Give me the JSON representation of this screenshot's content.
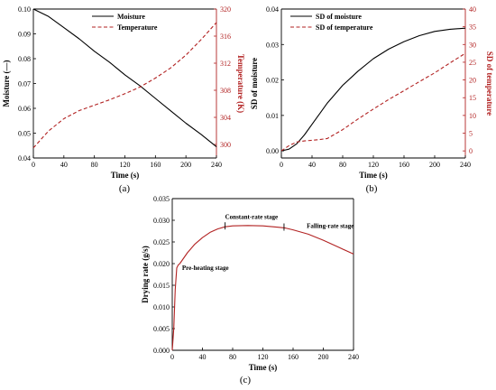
{
  "colors": {
    "black": "#000000",
    "red": "#b22222"
  },
  "chart_data": [
    {
      "type": "line",
      "panel_label": "(a)",
      "xlabel": "Time (s)",
      "ylabel": "Moisture (—)",
      "y2label": "Temperature (K)",
      "xlim": [
        0,
        240
      ],
      "ylim": [
        0.04,
        0.1
      ],
      "y2lim": [
        298,
        320
      ],
      "xticks": [
        "0",
        "40",
        "80",
        "120",
        "160",
        "200",
        "240"
      ],
      "yticks": [
        "0.04",
        "0.05",
        "0.06",
        "0.07",
        "0.08",
        "0.09",
        "0.10"
      ],
      "y2ticks": [
        "300",
        "304",
        "308",
        "312",
        "316",
        "320"
      ],
      "legend_position": "top-center",
      "series": [
        {
          "name": "Moisture",
          "axis": "left",
          "style": "solid",
          "color": "#000000",
          "x": [
            0,
            20,
            40,
            60,
            80,
            100,
            120,
            140,
            160,
            180,
            200,
            220,
            240
          ],
          "y": [
            0.1,
            0.097,
            0.0925,
            0.088,
            0.083,
            0.0785,
            0.0735,
            0.069,
            0.064,
            0.059,
            0.054,
            0.0495,
            0.0445
          ]
        },
        {
          "name": "Temperature",
          "axis": "right",
          "style": "dashed",
          "color": "#b22222",
          "x": [
            0,
            20,
            40,
            60,
            80,
            100,
            120,
            140,
            160,
            180,
            200,
            220,
            240
          ],
          "y": [
            299.5,
            302.0,
            303.8,
            305.0,
            305.8,
            306.6,
            307.5,
            308.5,
            309.8,
            311.3,
            313.2,
            315.5,
            318.0
          ]
        }
      ]
    },
    {
      "type": "line",
      "panel_label": "(b)",
      "xlabel": "Time (s)",
      "ylabel": "SD of moisture",
      "y2label": "SD of temperature",
      "xlim": [
        0,
        240
      ],
      "ylim": [
        -0.002,
        0.04
      ],
      "y2lim": [
        -2,
        40
      ],
      "xticks": [
        "0",
        "40",
        "80",
        "120",
        "160",
        "200",
        "240"
      ],
      "yticks": [
        "0.00",
        "0.01",
        "0.02",
        "0.03",
        "0.04"
      ],
      "y2ticks": [
        "0",
        "5",
        "10",
        "15",
        "20",
        "25",
        "30",
        "35",
        "40"
      ],
      "legend_position": "top-left",
      "series": [
        {
          "name": "SD of moisture",
          "axis": "left",
          "style": "solid",
          "color": "#000000",
          "x": [
            0,
            10,
            20,
            30,
            40,
            50,
            60,
            80,
            100,
            120,
            140,
            160,
            180,
            200,
            220,
            240
          ],
          "y": [
            0.0,
            0.0005,
            0.002,
            0.0045,
            0.0075,
            0.0105,
            0.0135,
            0.0185,
            0.0225,
            0.026,
            0.0287,
            0.0308,
            0.0325,
            0.0337,
            0.0343,
            0.0346
          ]
        },
        {
          "name": "SD of temperature",
          "axis": "right",
          "style": "dashed",
          "color": "#b22222",
          "x": [
            0,
            10,
            20,
            30,
            40,
            50,
            60,
            80,
            100,
            120,
            140,
            160,
            180,
            200,
            220,
            240
          ],
          "y": [
            0.0,
            1.5,
            2.5,
            2.8,
            3.0,
            3.2,
            3.5,
            6.0,
            9.0,
            11.8,
            14.5,
            17.0,
            19.5,
            22.0,
            24.8,
            27.5
          ]
        }
      ]
    },
    {
      "type": "line",
      "panel_label": "(c)",
      "xlabel": "Time (s)",
      "ylabel": "Drying rate (g/s)",
      "xlim": [
        0,
        240
      ],
      "ylim": [
        0,
        0.035
      ],
      "xticks": [
        "0",
        "40",
        "80",
        "120",
        "160",
        "200",
        "240"
      ],
      "yticks": [
        "0.000",
        "0.005",
        "0.010",
        "0.015",
        "0.020",
        "0.025",
        "0.030",
        "0.035"
      ],
      "annotations": [
        {
          "text": "Pre-heating stage",
          "x": 13,
          "y": 0.0185
        },
        {
          "text": "Constant-rate stage",
          "x": 70,
          "y": 0.0303
        },
        {
          "text": "Falling-rate stage",
          "x": 178,
          "y": 0.0282
        }
      ],
      "stage_markers_x": [
        70,
        148
      ],
      "series": [
        {
          "name": "",
          "style": "solid",
          "color": "#b22222",
          "x": [
            0,
            2,
            4,
            6,
            8,
            10,
            20,
            30,
            40,
            50,
            60,
            70,
            80,
            100,
            120,
            140,
            150,
            160,
            180,
            200,
            220,
            240
          ],
          "y": [
            0.0,
            0.005,
            0.014,
            0.019,
            0.0197,
            0.02,
            0.0225,
            0.0245,
            0.026,
            0.0272,
            0.028,
            0.0285,
            0.0287,
            0.0288,
            0.0287,
            0.0284,
            0.0282,
            0.0278,
            0.0268,
            0.0254,
            0.0238,
            0.0222
          ]
        }
      ]
    }
  ]
}
